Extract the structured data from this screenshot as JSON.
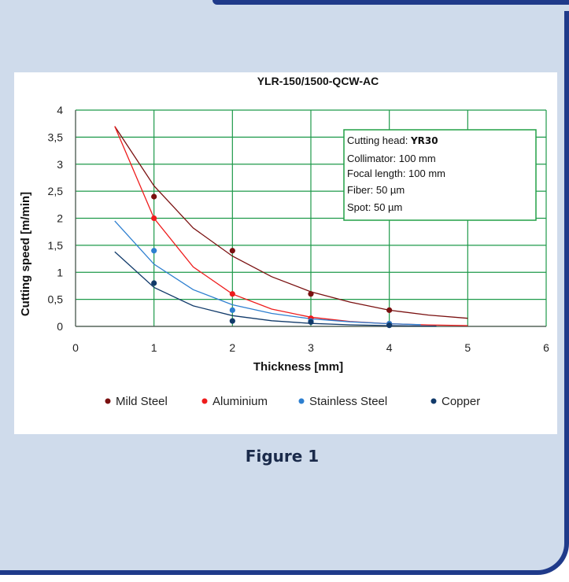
{
  "figure": {
    "caption": "Figure 1"
  },
  "chart_data": {
    "type": "scatter",
    "title": "YLR-150/1500-QCW-AC",
    "xlabel": "Thickness [mm]",
    "ylabel": "Cutting speed [m/min]",
    "xlim": [
      0,
      6
    ],
    "ylim": [
      0,
      4
    ],
    "x_ticks": [
      "0",
      "1",
      "2",
      "3",
      "4",
      "5",
      "6"
    ],
    "y_ticks": [
      "0",
      "0,5",
      "1",
      "1,5",
      "2",
      "2,5",
      "3",
      "3,5",
      "4"
    ],
    "grid": true,
    "legend_position": "bottom",
    "series": [
      {
        "name": "Mild Steel",
        "color": "#7a1010",
        "points": [
          [
            1,
            2.4
          ],
          [
            2,
            1.4
          ],
          [
            3,
            0.6
          ],
          [
            4,
            0.3
          ]
        ],
        "trend": [
          [
            0.5,
            3.7
          ],
          [
            1,
            2.6
          ],
          [
            1.5,
            1.82
          ],
          [
            2,
            1.3
          ],
          [
            2.5,
            0.92
          ],
          [
            3,
            0.64
          ],
          [
            3.5,
            0.45
          ],
          [
            4,
            0.3
          ],
          [
            4.5,
            0.21
          ],
          [
            5,
            0.15
          ]
        ]
      },
      {
        "name": "Aluminium",
        "color": "#ee1c1c",
        "points": [
          [
            1,
            2.0
          ],
          [
            2,
            0.6
          ],
          [
            3,
            0.15
          ],
          [
            4,
            0.05
          ]
        ],
        "trend": [
          [
            0.5,
            3.7
          ],
          [
            1,
            2.0
          ],
          [
            1.5,
            1.1
          ],
          [
            2,
            0.6
          ],
          [
            2.5,
            0.32
          ],
          [
            3,
            0.17
          ],
          [
            3.5,
            0.09
          ],
          [
            4,
            0.05
          ],
          [
            4.5,
            0.027
          ],
          [
            5,
            0.015
          ]
        ]
      },
      {
        "name": "Stainless Steel",
        "color": "#2d7fd0",
        "points": [
          [
            1,
            1.4
          ],
          [
            2,
            0.3
          ],
          [
            3,
            0.1
          ],
          [
            4,
            0.05
          ]
        ],
        "trend": [
          [
            0.5,
            1.95
          ],
          [
            1,
            1.15
          ],
          [
            1.5,
            0.68
          ],
          [
            2,
            0.4
          ],
          [
            2.5,
            0.24
          ],
          [
            3,
            0.14
          ],
          [
            3.5,
            0.085
          ],
          [
            4,
            0.05
          ],
          [
            4.4,
            0.032
          ]
        ]
      },
      {
        "name": "Copper",
        "color": "#113a6a",
        "points": [
          [
            1,
            0.8
          ],
          [
            2,
            0.1
          ],
          [
            3,
            0.08
          ],
          [
            4,
            0.02
          ]
        ],
        "trend": [
          [
            0.5,
            1.38
          ],
          [
            1,
            0.72
          ],
          [
            1.5,
            0.38
          ],
          [
            2,
            0.2
          ],
          [
            2.5,
            0.105
          ],
          [
            3,
            0.055
          ],
          [
            3.5,
            0.029
          ],
          [
            4,
            0.015
          ],
          [
            4.6,
            0.006
          ]
        ]
      }
    ],
    "info_box": {
      "lines": [
        {
          "label": "Cutting head: ",
          "value": "YR30"
        },
        {
          "label": "Collimator: 100 mm",
          "value": ""
        },
        {
          "label": "Focal length: 100 mm",
          "value": ""
        },
        {
          "label": "Fiber: 50 µm",
          "value": ""
        },
        {
          "label": "Spot: 50 µm",
          "value": ""
        }
      ]
    }
  }
}
